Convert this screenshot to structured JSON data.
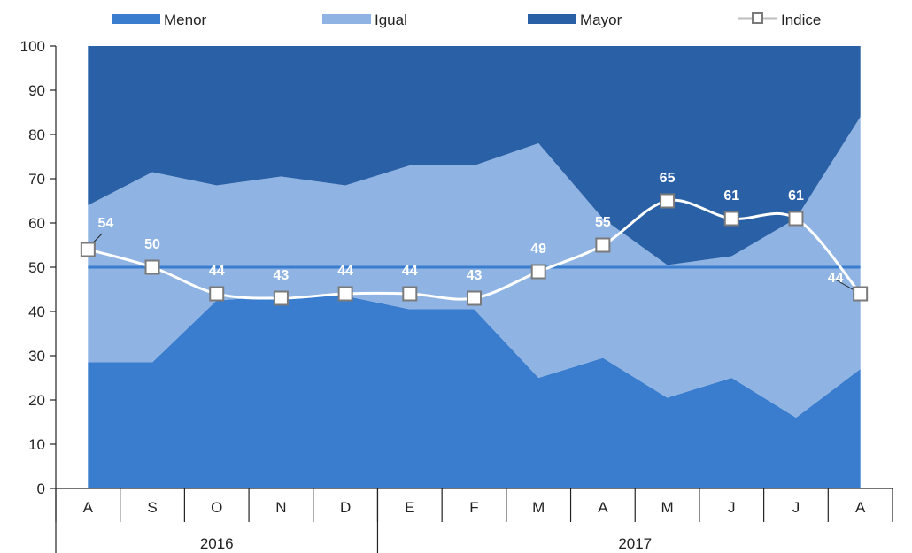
{
  "chart_data": {
    "type": "area",
    "stacked": true,
    "categories": [
      "A",
      "S",
      "O",
      "N",
      "D",
      "E",
      "F",
      "M",
      "A",
      "M",
      "J",
      "J",
      "A"
    ],
    "years": [
      {
        "label": "2016",
        "from": 0,
        "to": 4
      },
      {
        "label": "2017",
        "from": 5,
        "to": 12
      }
    ],
    "series": [
      {
        "name": "Menor",
        "color": "#3a7dce",
        "values": [
          28.5,
          28.5,
          42.5,
          43.5,
          43.5,
          40.5,
          40.5,
          25,
          29.5,
          20.5,
          25,
          16,
          27
        ]
      },
      {
        "name": "Igual",
        "color": "#8fb4e3",
        "values": [
          35.5,
          43,
          26,
          27,
          25,
          32.5,
          32.5,
          53,
          31.5,
          30,
          27.5,
          45,
          57
        ]
      },
      {
        "name": "Mayor",
        "color": "#2960a6",
        "values": [
          36,
          28.5,
          31.5,
          29.5,
          31.5,
          27,
          27,
          22,
          39,
          49.5,
          47.5,
          39,
          16
        ]
      }
    ],
    "line": {
      "name": "Indice",
      "values": [
        54,
        50,
        44,
        43,
        44,
        44,
        43,
        49,
        55,
        65,
        61,
        61,
        44
      ],
      "labels": [
        "54",
        "50",
        "44",
        "43",
        "44",
        "44",
        "43",
        "49",
        "55",
        "65",
        "61",
        "61",
        "44"
      ]
    },
    "reference_line": {
      "value": 50,
      "color": "#3a7dce"
    },
    "ylim": [
      0,
      100
    ],
    "yticks": [
      "0",
      "10",
      "20",
      "30",
      "40",
      "50",
      "60",
      "70",
      "80",
      "90",
      "100"
    ],
    "legend_position": "top",
    "grid": false
  }
}
